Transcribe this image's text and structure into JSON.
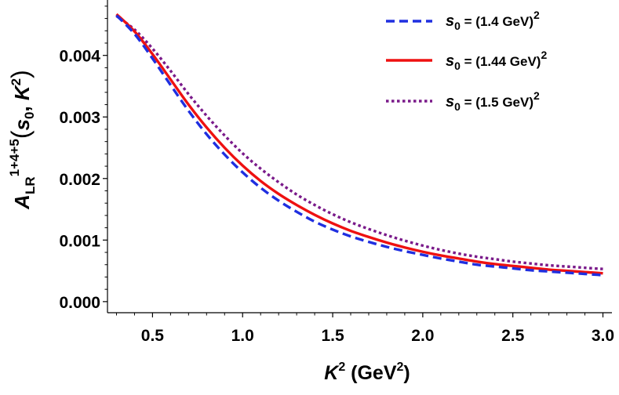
{
  "chart_data": {
    "type": "line",
    "xlabel": {
      "main": "K",
      "sup": "2",
      "unit_open": " (GeV",
      "unit_sup": "2",
      "unit_close": ")"
    },
    "ylabel": {
      "main": "A",
      "sub": "LR",
      "sup": "1+4+5",
      "arg_open": "(",
      "arg_s": "s",
      "arg_s_sub": "0",
      "arg_comma": ", ",
      "arg_k": "K",
      "arg_k_sup": "2",
      "arg_close": ")"
    },
    "xlim": [
      0.25,
      3.05
    ],
    "ylim": [
      -0.00018,
      0.0049
    ],
    "x_ticks": [
      0.5,
      1.0,
      1.5,
      2.0,
      2.5,
      3.0
    ],
    "x_tick_labels": [
      "0.5",
      "1.0",
      "1.5",
      "2.0",
      "2.5",
      "3.0"
    ],
    "y_ticks": [
      0.0,
      0.001,
      0.002,
      0.003,
      0.004
    ],
    "y_tick_labels": [
      "0.000",
      "0.001",
      "0.002",
      "0.003",
      "0.004"
    ],
    "grid": false,
    "legend_position": "top-right",
    "series": [
      {
        "name": "s0 = (1.4 GeV)2",
        "label": {
          "s": "s",
          "sub": "0",
          "rest": " = (1.4 GeV)",
          "sup": "2"
        },
        "color": "#1f2fe0",
        "style": "dashed",
        "x": [
          0.3,
          0.4,
          0.5,
          0.6,
          0.7,
          0.8,
          0.9,
          1.0,
          1.1,
          1.2,
          1.3,
          1.4,
          1.5,
          1.6,
          1.7,
          1.8,
          1.9,
          2.0,
          2.1,
          2.2,
          2.3,
          2.4,
          2.5,
          2.6,
          2.7,
          2.8,
          2.9,
          3.0
        ],
        "values": [
          0.00465,
          0.00435,
          0.00395,
          0.00352,
          0.0031,
          0.00272,
          0.00239,
          0.0021,
          0.00185,
          0.00164,
          0.00146,
          0.0013,
          0.00117,
          0.00106,
          0.00097,
          0.00089,
          0.00082,
          0.00076,
          0.0007,
          0.00065,
          0.0006,
          0.00057,
          0.00054,
          0.00051,
          0.00049,
          0.00047,
          0.00045,
          0.00043
        ]
      },
      {
        "name": "s0 = (1.44 GeV)2",
        "label": {
          "s": "s",
          "sub": "0",
          "rest": " = (1.44 GeV)",
          "sup": "2"
        },
        "color": "#ee1111",
        "style": "solid",
        "x": [
          0.3,
          0.4,
          0.5,
          0.6,
          0.7,
          0.8,
          0.9,
          1.0,
          1.1,
          1.2,
          1.3,
          1.4,
          1.5,
          1.6,
          1.7,
          1.8,
          1.9,
          2.0,
          2.1,
          2.2,
          2.3,
          2.4,
          2.5,
          2.6,
          2.7,
          2.8,
          2.9,
          3.0
        ],
        "values": [
          0.00467,
          0.00439,
          0.00402,
          0.00361,
          0.0032,
          0.00283,
          0.0025,
          0.00221,
          0.00196,
          0.00175,
          0.00157,
          0.00141,
          0.00127,
          0.00115,
          0.00105,
          0.00096,
          0.00088,
          0.00081,
          0.00075,
          0.0007,
          0.00065,
          0.00061,
          0.00058,
          0.00055,
          0.00052,
          0.0005,
          0.00048,
          0.00046
        ]
      },
      {
        "name": "s0 = (1.5 GeV)2",
        "label": {
          "s": "s",
          "sub": "0",
          "rest": " = (1.5 GeV)",
          "sup": "2"
        },
        "color": "#7a1a8a",
        "style": "dotted",
        "x": [
          0.3,
          0.4,
          0.5,
          0.6,
          0.7,
          0.8,
          0.9,
          1.0,
          1.1,
          1.2,
          1.3,
          1.4,
          1.5,
          1.6,
          1.7,
          1.8,
          1.9,
          2.0,
          2.1,
          2.2,
          2.3,
          2.4,
          2.5,
          2.6,
          2.7,
          2.8,
          2.9,
          3.0
        ],
        "values": [
          0.00464,
          0.00442,
          0.00411,
          0.00375,
          0.00337,
          0.00302,
          0.0027,
          0.00241,
          0.00216,
          0.00194,
          0.00174,
          0.00157,
          0.00142,
          0.00129,
          0.00118,
          0.00108,
          0.00099,
          0.00091,
          0.00084,
          0.00078,
          0.00073,
          0.00069,
          0.00065,
          0.00062,
          0.00059,
          0.00057,
          0.00055,
          0.00053
        ]
      }
    ]
  }
}
